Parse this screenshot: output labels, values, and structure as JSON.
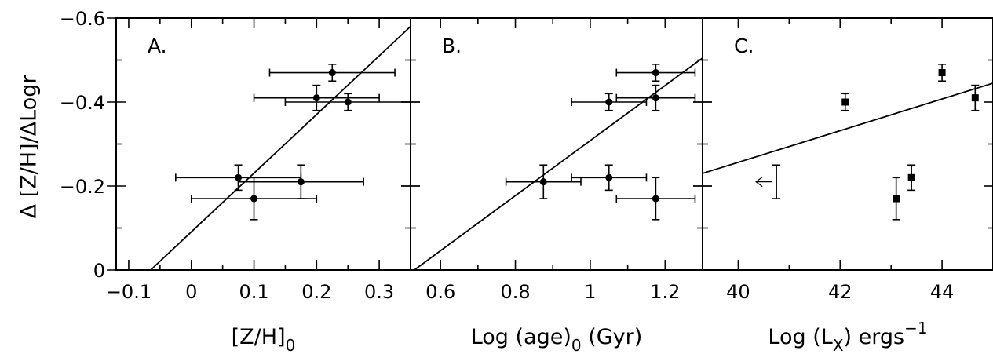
{
  "figure": {
    "ylabel": "Δ [Z/H]/ΔLogr"
  },
  "chart_data": [
    {
      "type": "scatter",
      "panel_label": "A.",
      "xlabel": "[Z/H]",
      "xlabel_sub": "0",
      "xlim": [
        -0.12,
        0.35
      ],
      "ylim": [
        0,
        -0.6
      ],
      "x_ticks": [
        -0.1,
        0,
        0.1,
        0.2,
        0.3
      ],
      "x_tick_labels": [
        "−0.1",
        "0",
        "0.1",
        "0.2",
        "0.3"
      ],
      "y_ticks": [
        0,
        -0.2,
        -0.4,
        -0.6
      ],
      "y_tick_labels": [
        "0",
        "−0.2",
        "−0.4",
        "−0.6"
      ],
      "points": [
        {
          "x": 0.225,
          "y": -0.47,
          "xerr": 0.1,
          "yerr": 0.02
        },
        {
          "x": 0.2,
          "y": -0.41,
          "xerr": 0.1,
          "yerr": 0.03
        },
        {
          "x": 0.25,
          "y": -0.4,
          "xerr": 0.1,
          "yerr": 0.02
        },
        {
          "x": 0.075,
          "y": -0.22,
          "xerr": 0.1,
          "yerr": 0.03
        },
        {
          "x": 0.175,
          "y": -0.21,
          "xerr": 0.1,
          "yerr": 0.04
        },
        {
          "x": 0.1,
          "y": -0.17,
          "xerr": 0.1,
          "yerr": 0.05
        }
      ],
      "fit_line": [
        [
          -0.065,
          0
        ],
        [
          0.35,
          -0.58
        ]
      ]
    },
    {
      "type": "scatter",
      "panel_label": "B.",
      "xlabel": "Log (age)",
      "xlabel_sub": "0",
      "xlabel_suffix": " (Gyr)",
      "xlim": [
        0.52,
        1.3
      ],
      "ylim": [
        0,
        -0.6
      ],
      "x_ticks": [
        0.6,
        0.8,
        1.0,
        1.2
      ],
      "x_tick_labels": [
        "0.6",
        "0.8",
        "1",
        "1.2"
      ],
      "y_ticks": [
        0,
        -0.2,
        -0.4,
        -0.6
      ],
      "points": [
        {
          "x": 1.175,
          "y": -0.47,
          "xerr": 0.105,
          "yerr": 0.02
        },
        {
          "x": 1.175,
          "y": -0.41,
          "xerr": 0.105,
          "yerr": 0.03
        },
        {
          "x": 1.05,
          "y": -0.4,
          "xerr": 0.1,
          "yerr": 0.02
        },
        {
          "x": 0.875,
          "y": -0.21,
          "xerr": 0.1,
          "yerr": 0.04
        },
        {
          "x": 1.05,
          "y": -0.22,
          "xerr": 0.1,
          "yerr": 0.03
        },
        {
          "x": 1.175,
          "y": -0.17,
          "xerr": 0.105,
          "yerr": 0.05
        }
      ],
      "fit_line": [
        [
          0.53,
          0
        ],
        [
          1.3,
          -0.505
        ]
      ]
    },
    {
      "type": "scatter",
      "panel_label": "C.",
      "xlabel": "Log (L",
      "xlabel_sub": "X",
      "xlabel_suffix": ") ergs",
      "xlabel_sup": "−1",
      "xlim": [
        39.3,
        45
      ],
      "ylim": [
        0,
        -0.6
      ],
      "x_ticks": [
        40,
        42,
        44
      ],
      "x_tick_labels": [
        "40",
        "42",
        "44"
      ],
      "y_ticks": [
        0,
        -0.2,
        -0.4,
        -0.6
      ],
      "points": [
        {
          "x": 42.1,
          "y": -0.4,
          "yerr": 0.02,
          "marker": "square"
        },
        {
          "x": 44.0,
          "y": -0.47,
          "yerr": 0.02,
          "marker": "square"
        },
        {
          "x": 44.65,
          "y": -0.41,
          "yerr": 0.03,
          "marker": "square"
        },
        {
          "x": 43.1,
          "y": -0.17,
          "yerr": 0.05,
          "marker": "square"
        },
        {
          "x": 43.4,
          "y": -0.22,
          "yerr": 0.03,
          "marker": "square"
        },
        {
          "x": 40.75,
          "y": -0.21,
          "yerr": 0.04,
          "marker": "upper-limit-arrow"
        }
      ],
      "fit_line": [
        [
          39.3,
          -0.23
        ],
        [
          45,
          -0.445
        ]
      ]
    }
  ]
}
